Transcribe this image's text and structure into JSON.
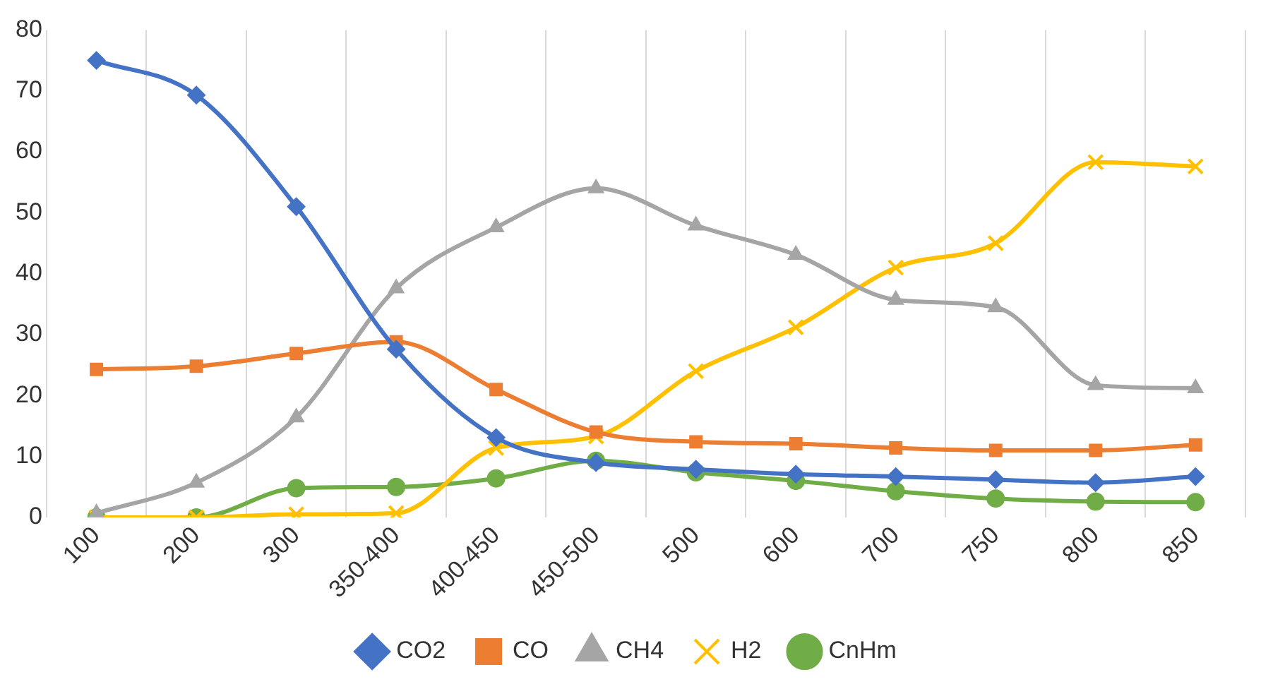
{
  "chart_data": {
    "type": "line",
    "categories": [
      "100",
      "200",
      "300",
      "350-400",
      "400-450",
      "450-500",
      "500",
      "600",
      "700",
      "750",
      "800",
      "850"
    ],
    "series": [
      {
        "name": "CO2",
        "color": "#4472c4",
        "marker": "diamond",
        "values": [
          75,
          69.3,
          51,
          27.6,
          13.1,
          9,
          7.9,
          7.1,
          6.7,
          6.2,
          5.7,
          6.7
        ]
      },
      {
        "name": "CO",
        "color": "#ed7d31",
        "marker": "square",
        "values": [
          24.3,
          24.8,
          26.9,
          28.8,
          21,
          14,
          12.4,
          12.1,
          11.4,
          11,
          11,
          11.9
        ]
      },
      {
        "name": "CH4",
        "color": "#a5a5a5",
        "marker": "triangle",
        "values": [
          0.7,
          5.7,
          16.4,
          37.6,
          47.6,
          54,
          47.9,
          43.1,
          35.7,
          34.5,
          21.7,
          21.2
        ]
      },
      {
        "name": "H2",
        "color": "#ffc000",
        "marker": "cross",
        "values": [
          0,
          0,
          0.5,
          0.7,
          11.4,
          13.3,
          24,
          31.2,
          41,
          45,
          58.3,
          57.6
        ]
      },
      {
        "name": "CnHm",
        "color": "#70ad47",
        "marker": "circle",
        "values": [
          0,
          0,
          4.8,
          5,
          6.4,
          9.3,
          7.4,
          6,
          4.3,
          3.1,
          2.6,
          2.5
        ]
      }
    ],
    "ylim": [
      0,
      80
    ],
    "yticks": [
      0,
      10,
      20,
      30,
      40,
      50,
      60,
      70,
      80
    ],
    "grid": "x",
    "legend": "bottom",
    "line_style": "solid"
  }
}
